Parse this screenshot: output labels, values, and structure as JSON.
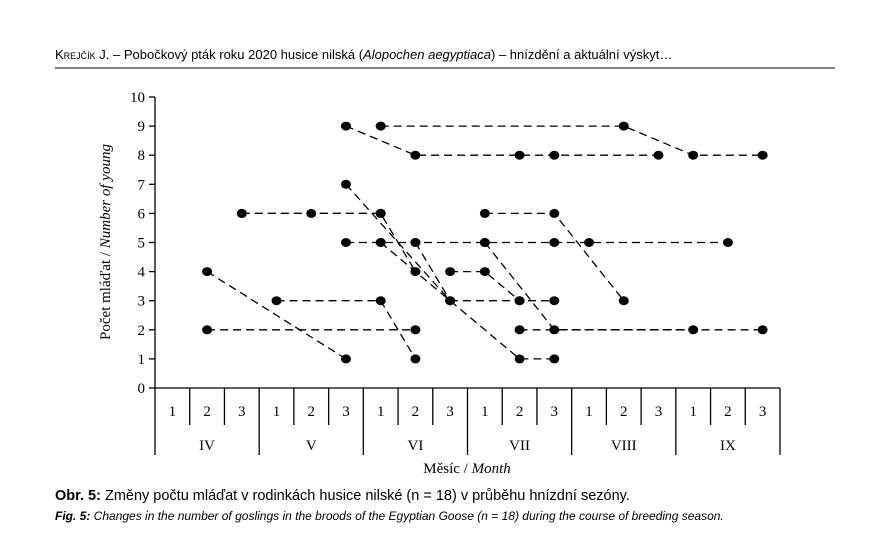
{
  "header": {
    "author": "Krejčík J.",
    "text_1": " – Pobočkový pták roku 2020 husice nilská (",
    "species": "Alopochen aegyptiaca",
    "text_2": ") – hnízdění a aktuální výskyt…"
  },
  "chart_data": {
    "type": "line",
    "y_label": "Počet mláďat / ",
    "y_label_en": "Number of young",
    "x_label": "Měsíc / ",
    "x_label_en": "Month",
    "categories": [
      "1",
      "2",
      "3",
      "1",
      "2",
      "3",
      "1",
      "2",
      "3",
      "1",
      "2",
      "3",
      "1",
      "2",
      "3",
      "1",
      "2",
      "3"
    ],
    "months": [
      "IV",
      "V",
      "VI",
      "VII",
      "VIII",
      "IX"
    ],
    "ylim": [
      0,
      10
    ],
    "yticks": [
      0,
      1,
      2,
      3,
      4,
      5,
      6,
      7,
      8,
      9,
      10
    ],
    "color": "#000000",
    "series": [
      {
        "x": [
          1,
          5
        ],
        "values": [
          4,
          1
        ]
      },
      {
        "x": [
          1,
          7
        ],
        "values": [
          2,
          2
        ]
      },
      {
        "x": [
          3,
          6,
          7
        ],
        "values": [
          3,
          3,
          1
        ]
      },
      {
        "x": [
          2,
          4,
          6
        ],
        "values": [
          6,
          6,
          6
        ]
      },
      {
        "x": [
          2,
          6,
          7
        ],
        "values": [
          6,
          6,
          4
        ]
      },
      {
        "x": [
          5,
          7,
          10,
          11,
          14
        ],
        "values": [
          9,
          8,
          8,
          8,
          8
        ]
      },
      {
        "x": [
          6,
          13,
          15,
          17
        ],
        "values": [
          9,
          9,
          8,
          8
        ]
      },
      {
        "x": [
          5,
          8,
          10,
          11
        ],
        "values": [
          7,
          3,
          3,
          3
        ]
      },
      {
        "x": [
          5,
          6,
          7,
          9,
          11,
          12,
          16
        ],
        "values": [
          5,
          5,
          5,
          5,
          5,
          5,
          5
        ]
      },
      {
        "x": [
          6,
          10,
          11
        ],
        "values": [
          5,
          1,
          1
        ]
      },
      {
        "x": [
          7,
          8
        ],
        "values": [
          5,
          3
        ]
      },
      {
        "x": [
          8,
          9,
          10
        ],
        "values": [
          4,
          4,
          3
        ]
      },
      {
        "x": [
          9,
          11,
          13
        ],
        "values": [
          6,
          6,
          3
        ]
      },
      {
        "x": [
          9,
          11,
          15
        ],
        "values": [
          5,
          2,
          2
        ]
      },
      {
        "x": [
          10,
          17
        ],
        "values": [
          2,
          2
        ]
      }
    ]
  },
  "caption": {
    "label": "Obr. 5:",
    "text": " Změny počtu mláďat v rodinkách husice nilské (n = 18) v průběhu hnízdní sezóny.",
    "label_en": "Fig. 5:",
    "text_en": " Changes in the number of goslings in the broods of the Egyptian Goose (n = 18) during the course of breeding season."
  }
}
